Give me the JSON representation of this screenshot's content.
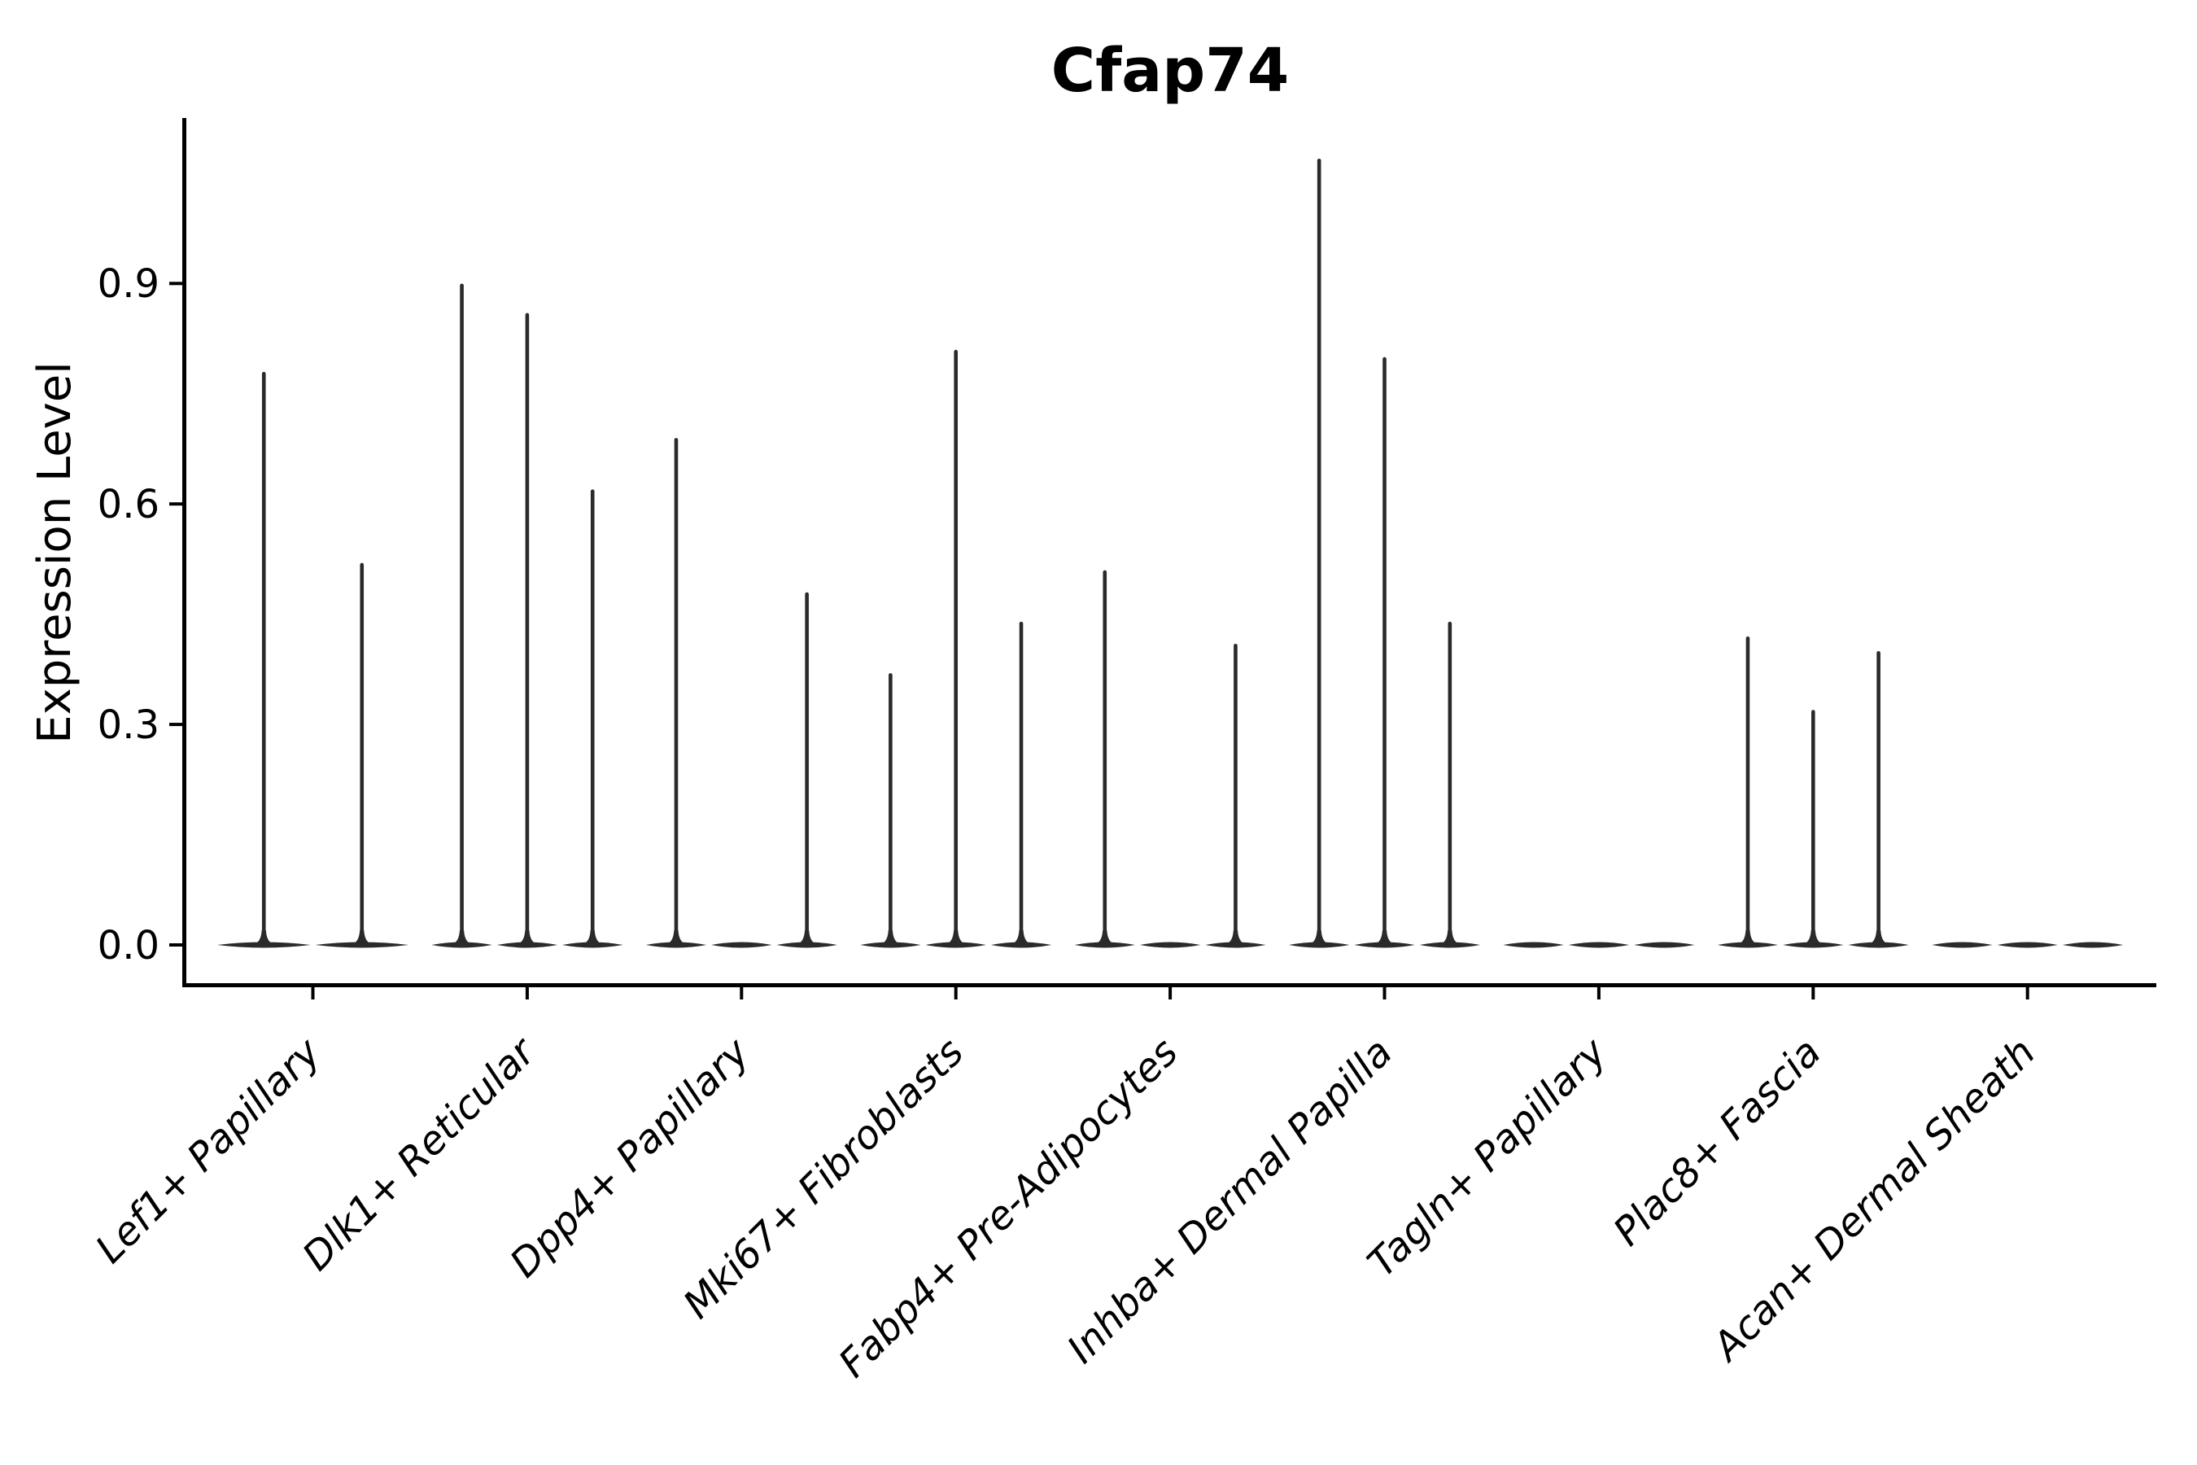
{
  "chart_data": {
    "type": "violin",
    "title": "Cfap74",
    "xlabel": "",
    "ylabel": "Expression Level",
    "ytick_values": [
      0.0,
      0.3,
      0.6,
      0.9
    ],
    "ytick_labels": [
      "0.0",
      "0.3",
      "0.6",
      "0.9"
    ],
    "ylim": [
      -0.052,
      1.125
    ],
    "grid": false,
    "legend": null,
    "orientation": "vertical",
    "violin_note": "Each category holds 2-3 flat sub-violins at expression 0 with a thin spike up to the listed maximum; 0 means a flat violin with no spike.",
    "categories": [
      "Lef1+ Papillary",
      "Dlk1+ Reticular",
      "Dpp4+ Papillary",
      "Mki67+ Fibroblasts",
      "Fabp4+ Pre-Adipocytes",
      "Inhba+ Dermal Papilla",
      "Tagln+ Papillary",
      "Plac8+ Fascia",
      "Acan+ Dermal Sheath"
    ],
    "groups": [
      {
        "category": "Lef1+ Papillary",
        "violins": [
          0.78,
          0.52
        ]
      },
      {
        "category": "Dlk1+ Reticular",
        "violins": [
          0.9,
          0.86,
          0.62
        ]
      },
      {
        "category": "Dpp4+ Papillary",
        "violins": [
          0.69,
          0,
          0.48
        ]
      },
      {
        "category": "Mki67+ Fibroblasts",
        "violins": [
          0.37,
          0.81,
          0.44
        ]
      },
      {
        "category": "Fabp4+ Pre-Adipocytes",
        "violins": [
          0.51,
          0,
          0.41
        ]
      },
      {
        "category": "Inhba+ Dermal Papilla",
        "violins": [
          1.07,
          0.8,
          0.44
        ]
      },
      {
        "category": "Tagln+ Papillary",
        "violins": [
          0,
          0,
          0
        ]
      },
      {
        "category": "Plac8+ Fascia",
        "violins": [
          0.42,
          0.32,
          0.4
        ]
      },
      {
        "category": "Acan+ Dermal Sheath",
        "violins": [
          0,
          0,
          0
        ]
      }
    ],
    "colors": {
      "violin": "#2a2a2a",
      "axis": "#000000",
      "background": "#ffffff"
    }
  }
}
